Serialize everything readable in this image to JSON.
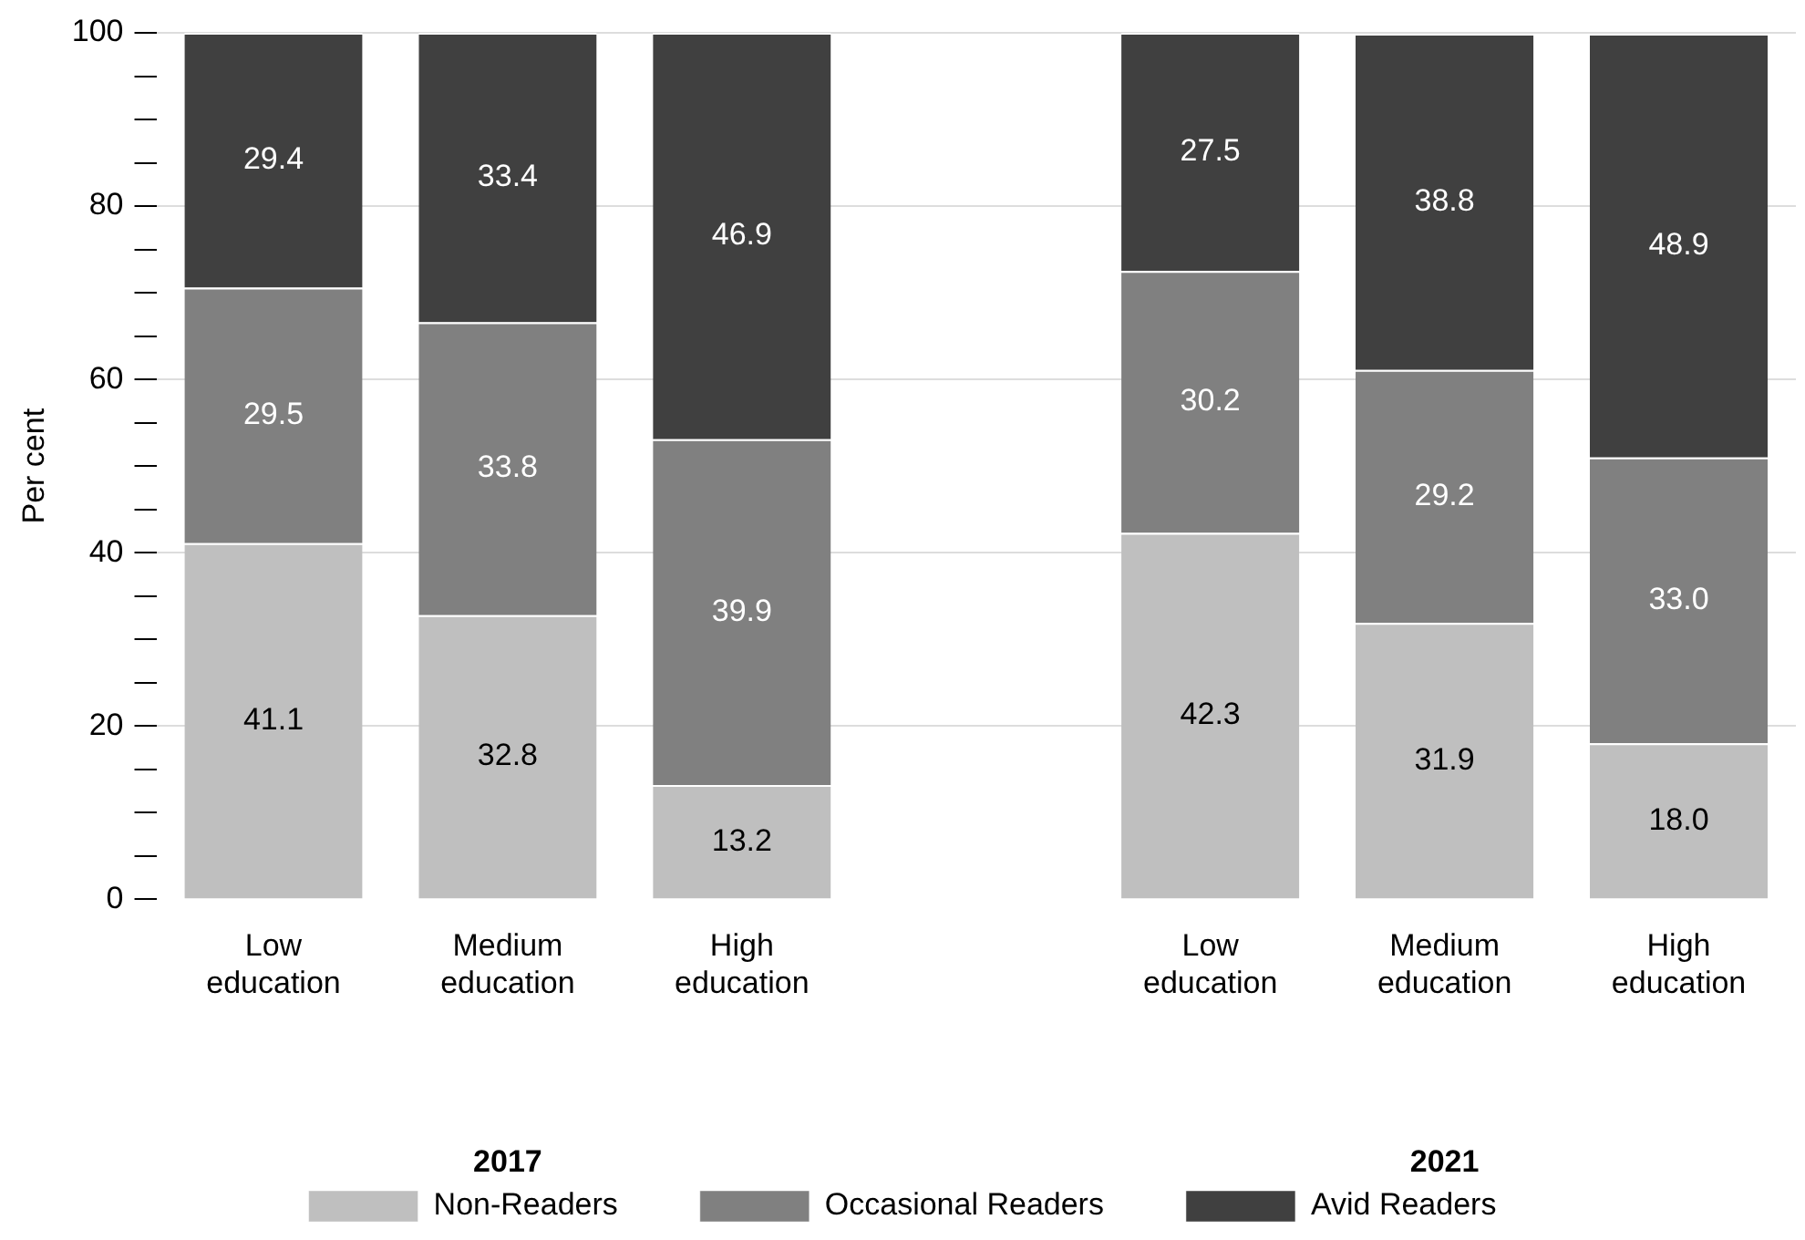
{
  "chart_data": {
    "type": "bar",
    "stacked": true,
    "ylabel": "Per cent",
    "categories": [
      "Low education",
      "Medium education",
      "High education",
      null,
      "Low education",
      "Medium education",
      "High education"
    ],
    "series": [
      {
        "name": "Non-Readers",
        "color": "#bfbfbf",
        "values": [
          41.1,
          32.8,
          13.2,
          null,
          42.3,
          31.9,
          18.0
        ],
        "value_labels": [
          "41.1",
          "32.8",
          "13.2",
          null,
          "42.3",
          "31.9",
          "18.0"
        ]
      },
      {
        "name": "Occasional Readers",
        "color": "#808080",
        "values": [
          29.5,
          33.8,
          39.9,
          null,
          30.2,
          29.2,
          33.0
        ],
        "value_labels": [
          "29.5",
          "33.8",
          "39.9",
          null,
          "30.2",
          "29.2",
          "33.0"
        ]
      },
      {
        "name": "Avid Readers",
        "color": "#404040",
        "values": [
          29.4,
          33.4,
          46.9,
          null,
          27.5,
          38.8,
          48.9
        ],
        "value_labels": [
          "29.4",
          "33.4",
          "46.9",
          null,
          "27.5",
          "38.8",
          "48.9"
        ]
      }
    ],
    "ylim": [
      0,
      100
    ],
    "yticks": [
      0,
      {
        "value": 5,
        "label": null
      },
      {
        "value": 10,
        "label": null
      },
      {
        "value": 15,
        "label": null
      },
      20,
      {
        "value": 25,
        "label": null
      },
      {
        "value": 30,
        "label": null
      },
      {
        "value": 35,
        "label": null
      },
      40,
      {
        "value": 45,
        "label": null
      },
      {
        "value": 50,
        "label": null
      },
      {
        "value": 55,
        "label": null
      },
      60,
      {
        "value": 65,
        "label": null
      },
      {
        "value": 70,
        "label": null
      },
      {
        "value": 75,
        "label": null
      },
      80,
      {
        "value": 85,
        "label": null
      },
      {
        "value": 90,
        "label": null
      },
      {
        "value": 95,
        "label": null
      },
      100
    ],
    "grid": "y",
    "legend": "bottom",
    "annotations": [
      "2017",
      "2021"
    ]
  }
}
